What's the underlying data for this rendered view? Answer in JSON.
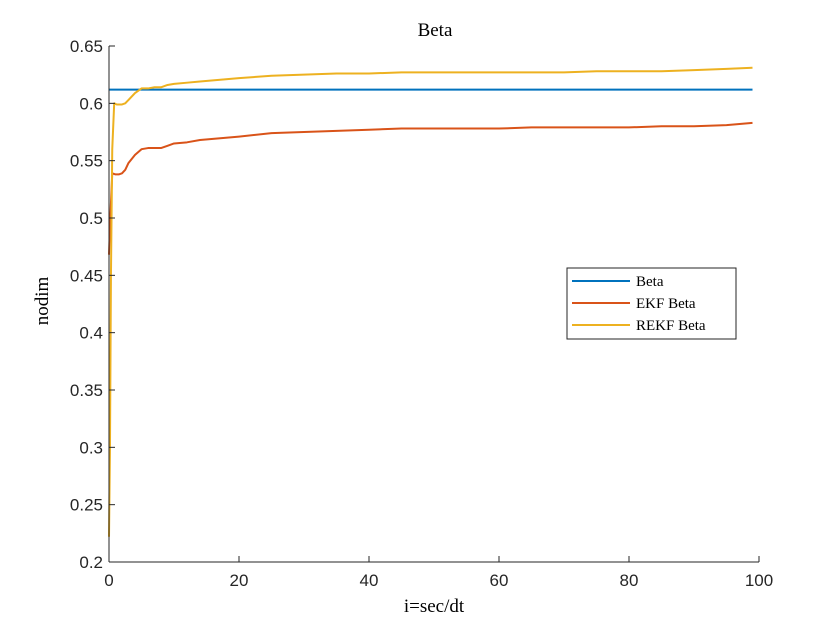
{
  "chart_data": {
    "type": "line",
    "title": "Beta",
    "xlabel": "i=sec/dt",
    "ylabel": "nodim",
    "xlim": [
      0,
      100
    ],
    "ylim": [
      0.2,
      0.65
    ],
    "xticks": [
      "0",
      "20",
      "40",
      "60",
      "80",
      "100"
    ],
    "yticks": [
      "0.2",
      "0.25",
      "0.3",
      "0.35",
      "0.4",
      "0.45",
      "0.5",
      "0.55",
      "0.6",
      "0.65"
    ],
    "grid": false,
    "legend_position": "center-right",
    "series": [
      {
        "name": "Beta",
        "color": "#0072BD",
        "x": [
          0,
          99
        ],
        "y": [
          0.612,
          0.612
        ]
      },
      {
        "name": "EKF Beta",
        "color": "#D95319",
        "x": [
          0,
          0.2,
          0.5,
          1,
          1.5,
          2,
          2.5,
          3,
          4,
          5,
          6,
          7,
          8,
          9,
          10,
          12,
          14,
          16,
          18,
          20,
          25,
          30,
          35,
          40,
          45,
          50,
          55,
          60,
          65,
          70,
          75,
          80,
          85,
          90,
          95,
          99
        ],
        "y": [
          0.468,
          0.5,
          0.539,
          0.538,
          0.538,
          0.539,
          0.542,
          0.548,
          0.555,
          0.56,
          0.561,
          0.561,
          0.561,
          0.563,
          0.565,
          0.566,
          0.568,
          0.569,
          0.57,
          0.571,
          0.574,
          0.575,
          0.576,
          0.577,
          0.578,
          0.578,
          0.578,
          0.578,
          0.579,
          0.579,
          0.579,
          0.579,
          0.58,
          0.58,
          0.581,
          0.583
        ]
      },
      {
        "name": "REKF Beta",
        "color": "#EDB120",
        "x": [
          0,
          0.15,
          0.3,
          0.5,
          0.8,
          1.2,
          2,
          2.5,
          3,
          4,
          5,
          6,
          7,
          8,
          9,
          10,
          12,
          14,
          16,
          18,
          20,
          25,
          30,
          35,
          40,
          45,
          50,
          55,
          60,
          65,
          70,
          75,
          80,
          85,
          90,
          95,
          99
        ],
        "y": [
          0.222,
          0.3,
          0.45,
          0.56,
          0.6,
          0.599,
          0.599,
          0.6,
          0.603,
          0.609,
          0.613,
          0.613,
          0.614,
          0.614,
          0.616,
          0.617,
          0.618,
          0.619,
          0.62,
          0.621,
          0.622,
          0.624,
          0.625,
          0.626,
          0.626,
          0.627,
          0.627,
          0.627,
          0.627,
          0.627,
          0.627,
          0.628,
          0.628,
          0.628,
          0.629,
          0.63,
          0.631
        ]
      }
    ]
  }
}
